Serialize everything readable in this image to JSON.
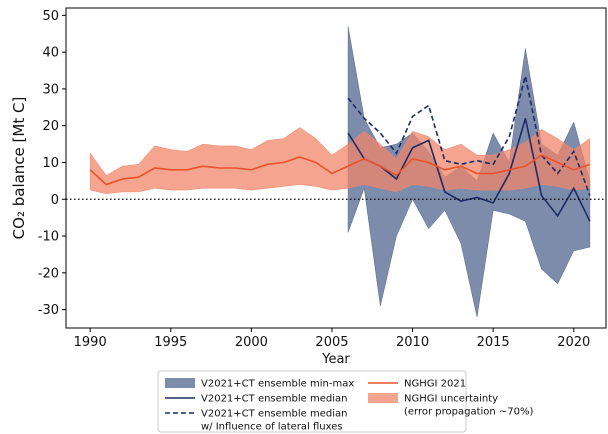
{
  "chart_data": {
    "type": "line",
    "xlabel": "Year",
    "ylabel": "CO₂ balance [Mt C]",
    "xlim": [
      1988.5,
      2022
    ],
    "ylim": [
      -35,
      52
    ],
    "xticks": [
      1990,
      1995,
      2000,
      2005,
      2010,
      2015,
      2020
    ],
    "yticks": [
      -30,
      -20,
      -10,
      0,
      10,
      20,
      30,
      40,
      50
    ],
    "zero_line": true,
    "series": [
      {
        "name": "V2021+CT ensemble min-max",
        "kind": "band",
        "color": "#52668f",
        "x": [
          2006,
          2007,
          2008,
          2009,
          2010,
          2011,
          2012,
          2013,
          2014,
          2015,
          2016,
          2017,
          2018,
          2019,
          2020,
          2021
        ],
        "upper": [
          47,
          22,
          14,
          15,
          18,
          13,
          6,
          9,
          5,
          18,
          10,
          41,
          15,
          12,
          21,
          5
        ],
        "lower": [
          -9,
          3,
          -29,
          -10,
          0,
          -8,
          -3,
          -12,
          -32,
          -3,
          -4,
          -6,
          -19,
          -23,
          -14,
          -13
        ]
      },
      {
        "name": "NGHGI uncertainty\n(error propagation ~70%)",
        "kind": "band",
        "color": "#f0866a",
        "x": [
          1990,
          1991,
          1992,
          1993,
          1994,
          1995,
          1996,
          1997,
          1998,
          1999,
          2000,
          2001,
          2002,
          2003,
          2004,
          2005,
          2006,
          2007,
          2008,
          2009,
          2010,
          2011,
          2012,
          2013,
          2014,
          2015,
          2016,
          2017,
          2018,
          2019,
          2020,
          2021
        ],
        "upper": [
          12.5,
          6.5,
          9,
          9.5,
          14.5,
          13.5,
          13,
          15,
          14.5,
          14.5,
          13.5,
          16,
          16.5,
          19.5,
          16.5,
          12,
          15,
          18.5,
          15,
          11,
          18.5,
          17,
          13.5,
          15,
          12,
          12,
          13.5,
          15.5,
          19,
          16.5,
          13.5,
          16.5
        ],
        "lower": [
          2.5,
          1.5,
          2,
          2,
          3,
          2.5,
          2.5,
          3,
          3,
          3,
          2.5,
          3,
          3.5,
          4,
          3.5,
          2.5,
          3,
          4,
          3,
          2,
          4,
          3.5,
          2.5,
          3,
          2.5,
          2.5,
          2.5,
          3,
          4,
          3.5,
          2.5,
          3
        ]
      },
      {
        "name": "V2021+CT ensemble median",
        "kind": "line",
        "color": "#1c2c66",
        "dash": false,
        "x": [
          2006,
          2007,
          2008,
          2009,
          2010,
          2011,
          2012,
          2013,
          2014,
          2015,
          2016,
          2017,
          2018,
          2019,
          2020,
          2021
        ],
        "values": [
          18,
          11,
          9,
          5.5,
          14,
          16,
          2,
          -0.5,
          0.5,
          -1,
          7,
          22,
          1,
          -4.5,
          3,
          -6
        ]
      },
      {
        "name": "V2021+CT ensemble median\nw/ Influence of lateral fluxes",
        "kind": "line",
        "color": "#1c2c66",
        "dash": true,
        "x": [
          2006,
          2007,
          2008,
          2009,
          2010,
          2011,
          2012,
          2013,
          2014,
          2015,
          2016,
          2017,
          2018,
          2019,
          2020,
          2021
        ],
        "values": [
          27.5,
          22,
          18,
          12.5,
          22.5,
          25.5,
          10.5,
          9.5,
          10.5,
          9.5,
          17,
          33.5,
          12,
          7,
          13,
          1
        ]
      },
      {
        "name": "NGHGI 2021",
        "kind": "line",
        "color": "#e8532c",
        "dash": false,
        "x": [
          1990,
          1991,
          1992,
          1993,
          1994,
          1995,
          1996,
          1997,
          1998,
          1999,
          2000,
          2001,
          2002,
          2003,
          2004,
          2005,
          2006,
          2007,
          2008,
          2009,
          2010,
          2011,
          2012,
          2013,
          2014,
          2015,
          2016,
          2017,
          2018,
          2019,
          2020,
          2021
        ],
        "values": [
          8,
          4,
          5.5,
          6,
          8.5,
          8,
          8,
          9,
          8.5,
          8.5,
          8,
          9.5,
          10,
          11.5,
          10,
          7,
          9,
          11,
          9,
          6.5,
          11,
          10,
          8,
          9,
          7,
          7,
          8,
          9,
          12,
          10,
          8,
          9.5
        ]
      }
    ]
  }
}
